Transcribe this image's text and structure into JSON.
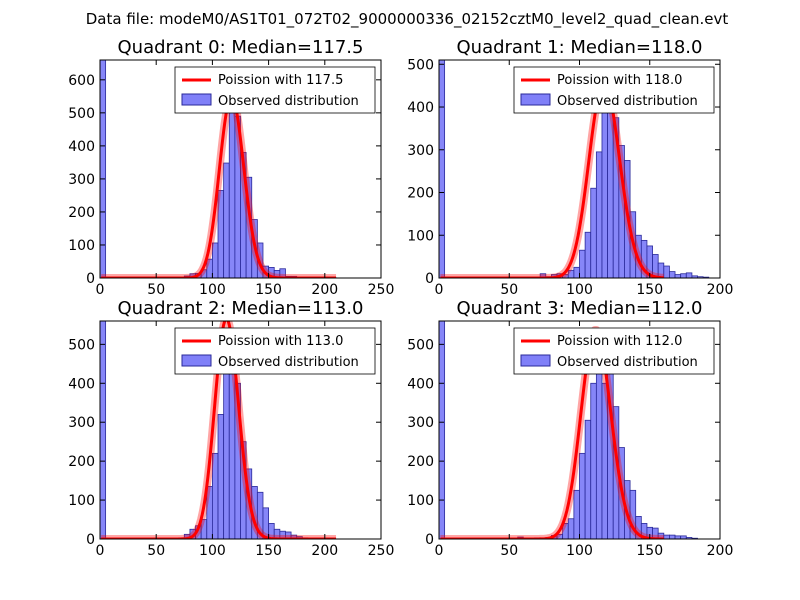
{
  "figure_title": "Data file: modeM0/AS1T01_072T02_9000000336_02152cztM0_level2_quad_clean.evt",
  "colors": {
    "bar_fill": "#8080f8",
    "bar_edge": "#2a2a9a",
    "poisson_line": "#ff0000"
  },
  "chart_data": [
    {
      "type": "bar",
      "title": "Quadrant 0: Median=117.5",
      "median": 117.5,
      "xlim": [
        0,
        250
      ],
      "ylim": [
        0,
        660
      ],
      "xticks": [
        0,
        50,
        100,
        150,
        200,
        250
      ],
      "yticks": [
        0,
        100,
        200,
        300,
        400,
        500,
        600
      ],
      "bin_width": 5,
      "bins": [
        [
          0,
          660
        ],
        [
          75,
          6
        ],
        [
          80,
          13
        ],
        [
          85,
          14
        ],
        [
          90,
          25
        ],
        [
          95,
          57
        ],
        [
          100,
          106
        ],
        [
          105,
          265
        ],
        [
          110,
          348
        ],
        [
          115,
          550
        ],
        [
          120,
          490
        ],
        [
          125,
          380
        ],
        [
          130,
          305
        ],
        [
          135,
          177
        ],
        [
          140,
          106
        ],
        [
          145,
          36
        ],
        [
          150,
          32
        ],
        [
          155,
          23
        ],
        [
          160,
          28
        ],
        [
          165,
          5
        ],
        [
          170,
          5
        ],
        [
          175,
          3
        ],
        [
          180,
          2
        ],
        [
          185,
          2
        ],
        [
          190,
          2
        ],
        [
          195,
          1
        ],
        [
          200,
          1
        ],
        [
          205,
          1
        ]
      ],
      "legend": [
        "Poission with 117.5",
        "Observed distribution"
      ]
    },
    {
      "type": "bar",
      "title": "Quadrant 1: Median=118.0",
      "median": 118.0,
      "xlim": [
        0,
        200
      ],
      "ylim": [
        0,
        510
      ],
      "xticks": [
        0,
        50,
        100,
        150,
        200
      ],
      "yticks": [
        0,
        100,
        200,
        300,
        400,
        500
      ],
      "bin_width": 4,
      "bins": [
        [
          0,
          510
        ],
        [
          72,
          10
        ],
        [
          76,
          3
        ],
        [
          80,
          8
        ],
        [
          84,
          10
        ],
        [
          88,
          8
        ],
        [
          92,
          18
        ],
        [
          96,
          25
        ],
        [
          100,
          65
        ],
        [
          104,
          107
        ],
        [
          108,
          210
        ],
        [
          112,
          295
        ],
        [
          116,
          415
        ],
        [
          120,
          395
        ],
        [
          124,
          375
        ],
        [
          128,
          310
        ],
        [
          132,
          275
        ],
        [
          136,
          155
        ],
        [
          140,
          100
        ],
        [
          144,
          88
        ],
        [
          148,
          75
        ],
        [
          152,
          55
        ],
        [
          156,
          35
        ],
        [
          160,
          28
        ],
        [
          164,
          15
        ],
        [
          168,
          8
        ],
        [
          172,
          10
        ],
        [
          176,
          12
        ],
        [
          180,
          5
        ],
        [
          184,
          3
        ],
        [
          188,
          2
        ]
      ],
      "legend": [
        "Poission with 118.0",
        "Observed distribution"
      ]
    },
    {
      "type": "bar",
      "title": "Quadrant 2: Median=113.0",
      "median": 113.0,
      "xlim": [
        0,
        250
      ],
      "ylim": [
        0,
        560
      ],
      "xticks": [
        0,
        50,
        100,
        150,
        200,
        250
      ],
      "yticks": [
        0,
        100,
        200,
        300,
        400,
        500
      ],
      "bin_width": 5,
      "bins": [
        [
          0,
          560
        ],
        [
          65,
          2
        ],
        [
          70,
          3
        ],
        [
          75,
          12
        ],
        [
          80,
          25
        ],
        [
          85,
          34
        ],
        [
          90,
          50
        ],
        [
          95,
          135
        ],
        [
          100,
          220
        ],
        [
          105,
          320
        ],
        [
          110,
          440
        ],
        [
          115,
          480
        ],
        [
          120,
          400
        ],
        [
          125,
          250
        ],
        [
          130,
          180
        ],
        [
          135,
          135
        ],
        [
          140,
          120
        ],
        [
          145,
          80
        ],
        [
          150,
          40
        ],
        [
          155,
          25
        ],
        [
          160,
          20
        ],
        [
          165,
          18
        ],
        [
          170,
          10
        ],
        [
          175,
          6
        ],
        [
          180,
          3
        ],
        [
          185,
          2
        ],
        [
          190,
          1
        ],
        [
          195,
          1
        ],
        [
          200,
          1
        ]
      ],
      "legend": [
        "Poission with 113.0",
        "Observed distribution"
      ]
    },
    {
      "type": "bar",
      "title": "Quadrant 3: Median=112.0",
      "median": 112.0,
      "xlim": [
        0,
        200
      ],
      "ylim": [
        0,
        560
      ],
      "xticks": [
        0,
        50,
        100,
        150,
        200
      ],
      "yticks": [
        0,
        100,
        200,
        300,
        400,
        500
      ],
      "bin_width": 4,
      "bins": [
        [
          0,
          560
        ],
        [
          56,
          5
        ],
        [
          68,
          3
        ],
        [
          76,
          4
        ],
        [
          80,
          9
        ],
        [
          84,
          12
        ],
        [
          88,
          40
        ],
        [
          92,
          52
        ],
        [
          96,
          125
        ],
        [
          100,
          220
        ],
        [
          104,
          305
        ],
        [
          108,
          400
        ],
        [
          112,
          470
        ],
        [
          116,
          400
        ],
        [
          120,
          455
        ],
        [
          124,
          340
        ],
        [
          128,
          235
        ],
        [
          132,
          150
        ],
        [
          136,
          125
        ],
        [
          140,
          58
        ],
        [
          144,
          40
        ],
        [
          148,
          30
        ],
        [
          152,
          28
        ],
        [
          156,
          15
        ],
        [
          160,
          10
        ],
        [
          164,
          10
        ],
        [
          168,
          8
        ],
        [
          172,
          8
        ],
        [
          176,
          4
        ],
        [
          180,
          2
        ]
      ],
      "legend": [
        "Poission with 112.0",
        "Observed distribution"
      ]
    }
  ]
}
